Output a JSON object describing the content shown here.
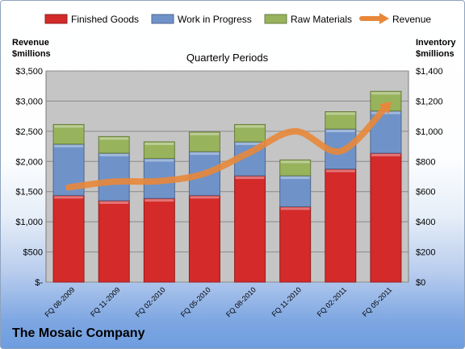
{
  "company_name": "The Mosaic Company",
  "chart_data": {
    "type": "bar",
    "stacked": true,
    "title": "Quarterly Periods",
    "ylabel_left": "Revenue\n$millions",
    "ylabel_right": "Inventory\n$millions",
    "categories": [
      "FQ 08-2009",
      "FQ 11-2009",
      "FQ 02-2010",
      "FQ 05-2010",
      "FQ 08-2010",
      "FQ 11-2010",
      "FQ 02-2011",
      "FQ 05-2011"
    ],
    "series": [
      {
        "name": "Finished Goods",
        "axis": "right",
        "color": "#d42a2a",
        "values": [
          575,
          540,
          555,
          575,
          705,
          500,
          750,
          855
        ]
      },
      {
        "name": "Work in Progress",
        "axis": "right",
        "color": "#6f93c9",
        "values": [
          340,
          315,
          265,
          290,
          225,
          205,
          265,
          280
        ]
      },
      {
        "name": "Raw Materials",
        "axis": "right",
        "color": "#97b35c",
        "values": [
          130,
          110,
          110,
          130,
          115,
          105,
          115,
          130
        ]
      }
    ],
    "line": {
      "name": "Revenue",
      "axis": "left",
      "color": "#e8873a",
      "values": [
        1570,
        1665,
        1675,
        1800,
        2150,
        2500,
        2170,
        2900
      ]
    },
    "ylim_left": [
      0,
      3500
    ],
    "yticks_left": [
      "$-",
      "$500",
      "$1,000",
      "$1,500",
      "$2,000",
      "$2,500",
      "$3,000",
      "$3,500"
    ],
    "ylim_right": [
      0,
      1400
    ],
    "yticks_right": [
      "$0",
      "$200",
      "$400",
      "$600",
      "$800",
      "$1,000",
      "$1,200",
      "$1,400"
    ],
    "legend_position": "top",
    "grid": true
  }
}
